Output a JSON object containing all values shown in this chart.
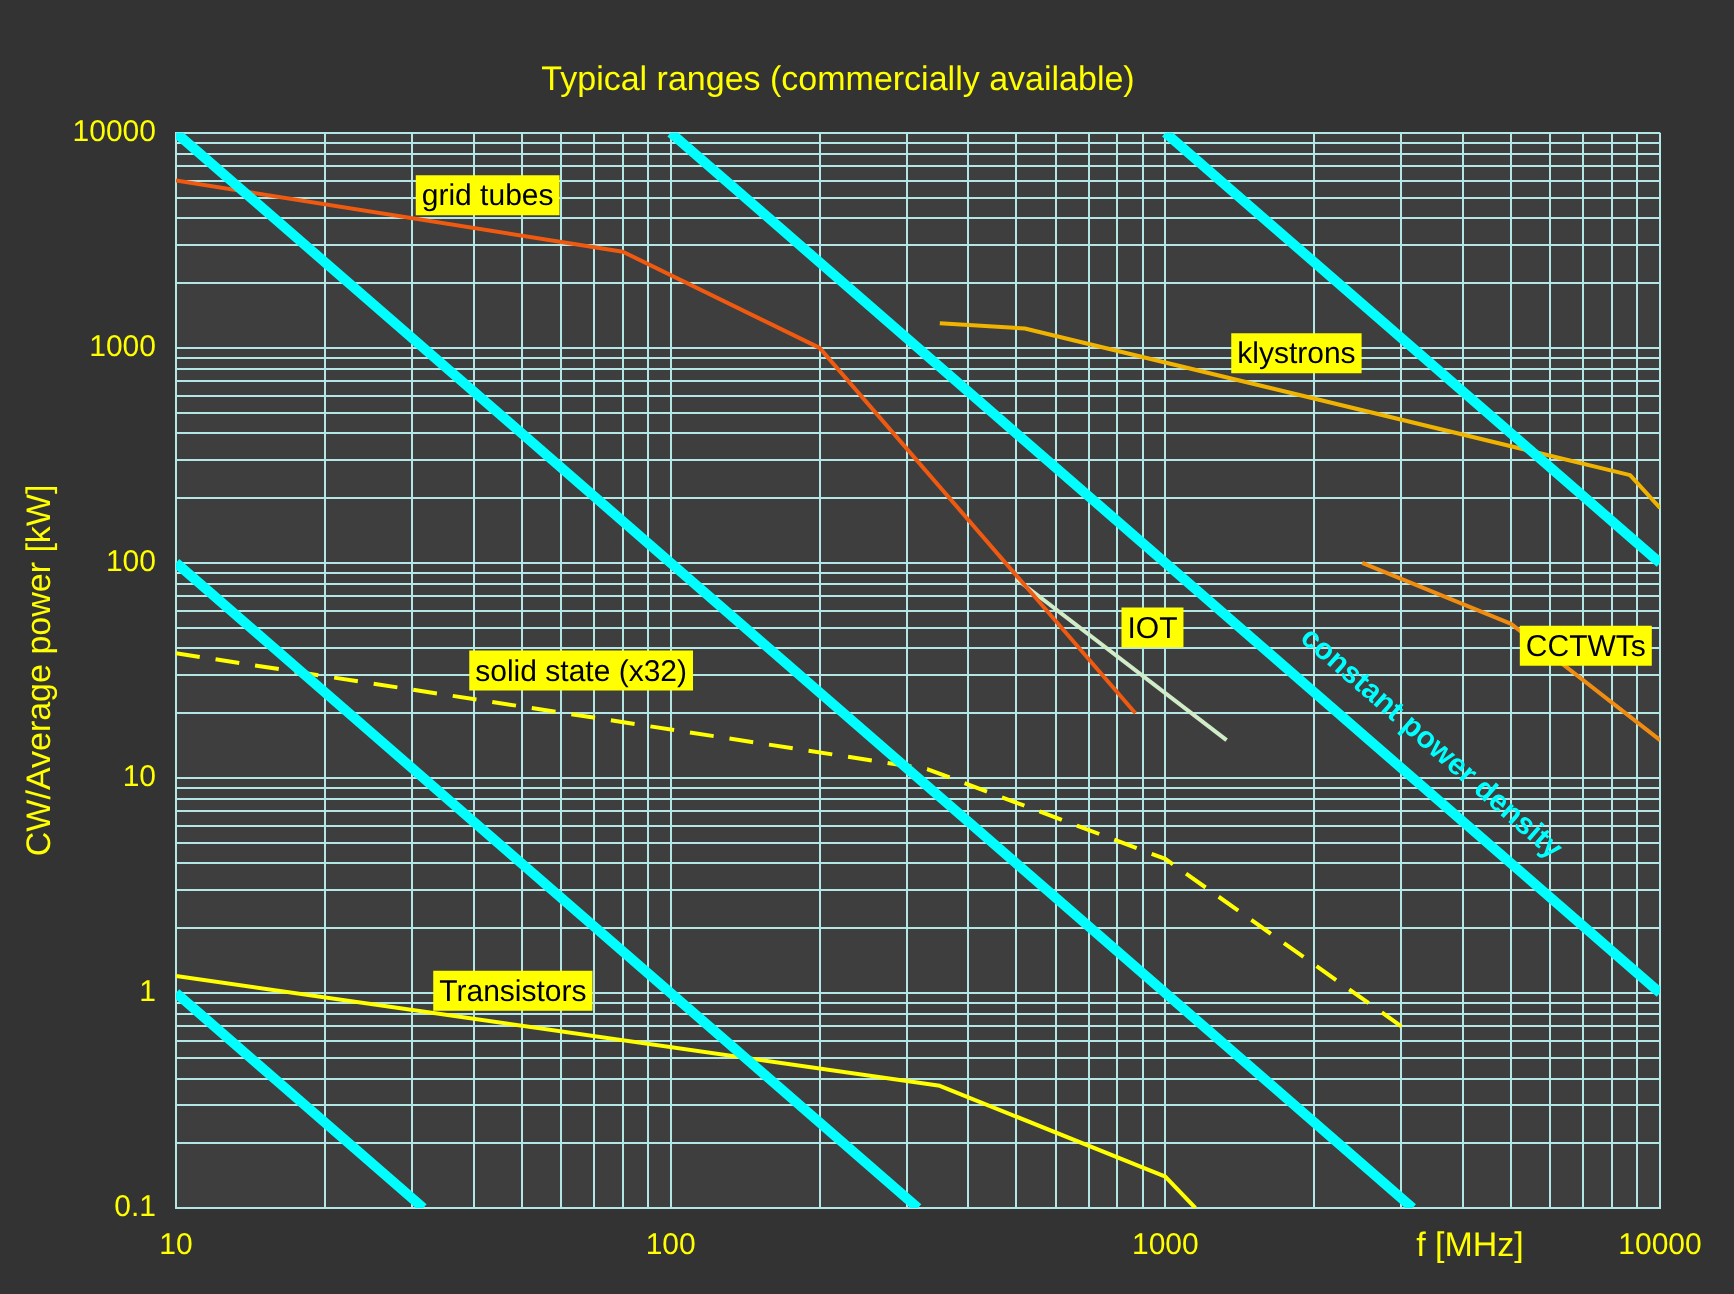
{
  "chart_data": {
    "type": "line",
    "title": "Typical ranges (commercially available)",
    "xlabel": "f [MHz]",
    "ylabel": "CW/Average power [kW]",
    "log": "xy",
    "grid": true,
    "marker": "none",
    "line_style": "solid",
    "xlim": [
      10,
      10000
    ],
    "ylim": [
      0.1,
      10000
    ],
    "xticks": [
      10,
      {
        "value": 20,
        "label": null
      },
      {
        "value": 30,
        "label": null
      },
      {
        "value": 40,
        "label": null
      },
      {
        "value": 50,
        "label": null
      },
      {
        "value": 60,
        "label": null
      },
      {
        "value": 70,
        "label": null
      },
      {
        "value": 80,
        "label": null
      },
      {
        "value": 90,
        "label": null
      },
      100,
      {
        "value": 200,
        "label": null
      },
      {
        "value": 300,
        "label": null
      },
      {
        "value": 400,
        "label": null
      },
      {
        "value": 500,
        "label": null
      },
      {
        "value": 600,
        "label": null
      },
      {
        "value": 700,
        "label": null
      },
      {
        "value": 800,
        "label": null
      },
      {
        "value": 900,
        "label": null
      },
      1000,
      {
        "value": 2000,
        "label": null
      },
      {
        "value": 3000,
        "label": null
      },
      {
        "value": 4000,
        "label": null
      },
      {
        "value": 5000,
        "label": null
      },
      {
        "value": 6000,
        "label": null
      },
      {
        "value": 7000,
        "label": null
      },
      {
        "value": 8000,
        "label": null
      },
      {
        "value": 9000,
        "label": null
      },
      10000
    ],
    "yticks": [
      0.1,
      {
        "value": 0.2,
        "label": null
      },
      {
        "value": 0.3,
        "label": null
      },
      {
        "value": 0.4,
        "label": null
      },
      {
        "value": 0.5,
        "label": null
      },
      {
        "value": 0.6,
        "label": null
      },
      {
        "value": 0.7,
        "label": null
      },
      {
        "value": 0.8,
        "label": null
      },
      {
        "value": 0.9,
        "label": null
      },
      1,
      {
        "value": 2,
        "label": null
      },
      {
        "value": 3,
        "label": null
      },
      {
        "value": 4,
        "label": null
      },
      {
        "value": 5,
        "label": null
      },
      {
        "value": 6,
        "label": null
      },
      {
        "value": 7,
        "label": null
      },
      {
        "value": 8,
        "label": null
      },
      {
        "value": 9,
        "label": null
      },
      10,
      {
        "value": 20,
        "label": null
      },
      {
        "value": 30,
        "label": null
      },
      {
        "value": 40,
        "label": null
      },
      {
        "value": 50,
        "label": null
      },
      {
        "value": 60,
        "label": null
      },
      {
        "value": 70,
        "label": null
      },
      {
        "value": 80,
        "label": null
      },
      {
        "value": 90,
        "label": null
      },
      100,
      {
        "value": 200,
        "label": null
      },
      {
        "value": 300,
        "label": null
      },
      {
        "value": 400,
        "label": null
      },
      {
        "value": 500,
        "label": null
      },
      {
        "value": 600,
        "label": null
      },
      {
        "value": 700,
        "label": null
      },
      {
        "value": 800,
        "label": null
      },
      {
        "value": 900,
        "label": null
      },
      1000,
      {
        "value": 2000,
        "label": null
      },
      {
        "value": 3000,
        "label": null
      },
      {
        "value": 4000,
        "label": null
      },
      {
        "value": 5000,
        "label": null
      },
      {
        "value": 6000,
        "label": null
      },
      {
        "value": 7000,
        "label": null
      },
      {
        "value": 8000,
        "label": null
      },
      {
        "value": 9000,
        "label": null
      },
      10000
    ],
    "series": [
      {
        "name": "grid tubes",
        "color": "#f05a10",
        "x": [
          10,
          80,
          200,
          870
        ],
        "values": [
          6000,
          2800,
          1000,
          20
        ]
      },
      {
        "name": "klystrons",
        "color": "#f0b400",
        "x": [
          350,
          520,
          8700,
          10000
        ],
        "values": [
          1300,
          1230,
          256,
          180
        ]
      },
      {
        "name": "IOT",
        "color": "#d0ecc8",
        "x": [
          500,
          1330
        ],
        "values": [
          84,
          15
        ]
      },
      {
        "name": "CCTWTs",
        "color": "#f08c10",
        "x": [
          2500,
          5000,
          10000
        ],
        "values": [
          100,
          52,
          15
        ]
      },
      {
        "name": "solid state (x32)",
        "color": "#ffff00",
        "line_style": "dashed",
        "x": [
          10,
          330,
          1000,
          3000
        ],
        "values": [
          38,
          11,
          4.2,
          0.7
        ]
      },
      {
        "name": "Transistors",
        "color": "#ffff00",
        "x": [
          10,
          350,
          1000,
          1150
        ],
        "values": [
          1.2,
          0.37,
          0.14,
          0.1
        ]
      },
      {
        "color": "#00ffff",
        "x": [
          10,
          31.62
        ],
        "values": [
          1,
          0.1
        ]
      },
      {
        "color": "#00ffff",
        "x": [
          10,
          316.2
        ],
        "values": [
          100,
          0.1
        ]
      },
      {
        "color": "#00ffff",
        "x": [
          10,
          3162
        ],
        "values": [
          10000,
          0.1
        ]
      },
      {
        "name": "constant power density",
        "color": "#00ffff",
        "x": [
          100,
          10000
        ],
        "values": [
          10000,
          1
        ]
      },
      {
        "color": "#00ffff",
        "x": [
          1000,
          10000
        ],
        "values": [
          10000,
          100
        ]
      }
    ]
  }
}
